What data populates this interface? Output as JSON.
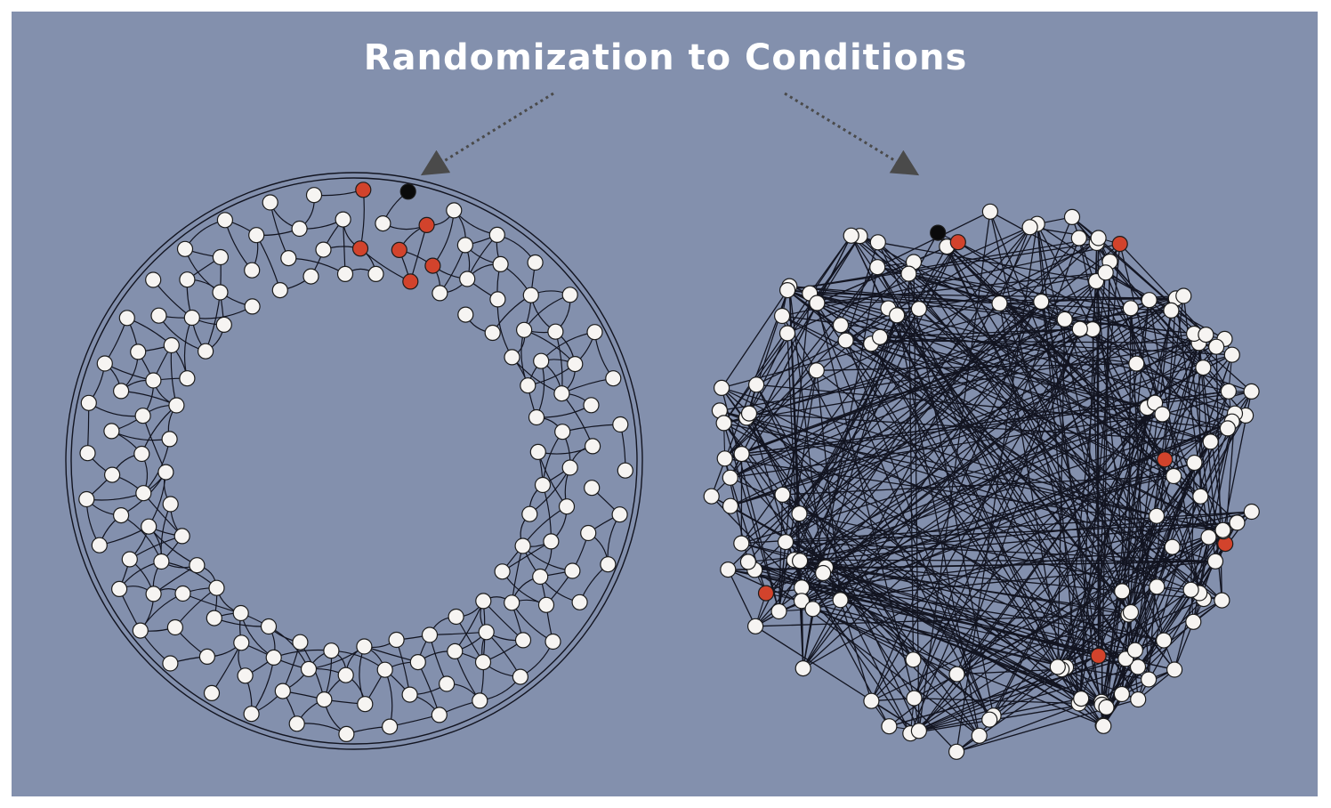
{
  "title": "Randomization to Conditions",
  "colors": {
    "background": "#8390ad",
    "edge": "#121420",
    "node_fill": "#f6f4f2",
    "node_stroke": "#1c1c1c",
    "adopter": "#d2432c",
    "seed": "#0a0a0a",
    "arrow": "#4a4a4a"
  },
  "networks": [
    {
      "name": "clustered-lattice-network",
      "layout": "ring",
      "nodes": 144,
      "seed_nodes": 1,
      "adopter_nodes": 6
    },
    {
      "name": "random-network",
      "layout": "scattered-disk",
      "nodes": 144,
      "seed_nodes": 1,
      "adopter_nodes": 6
    }
  ]
}
